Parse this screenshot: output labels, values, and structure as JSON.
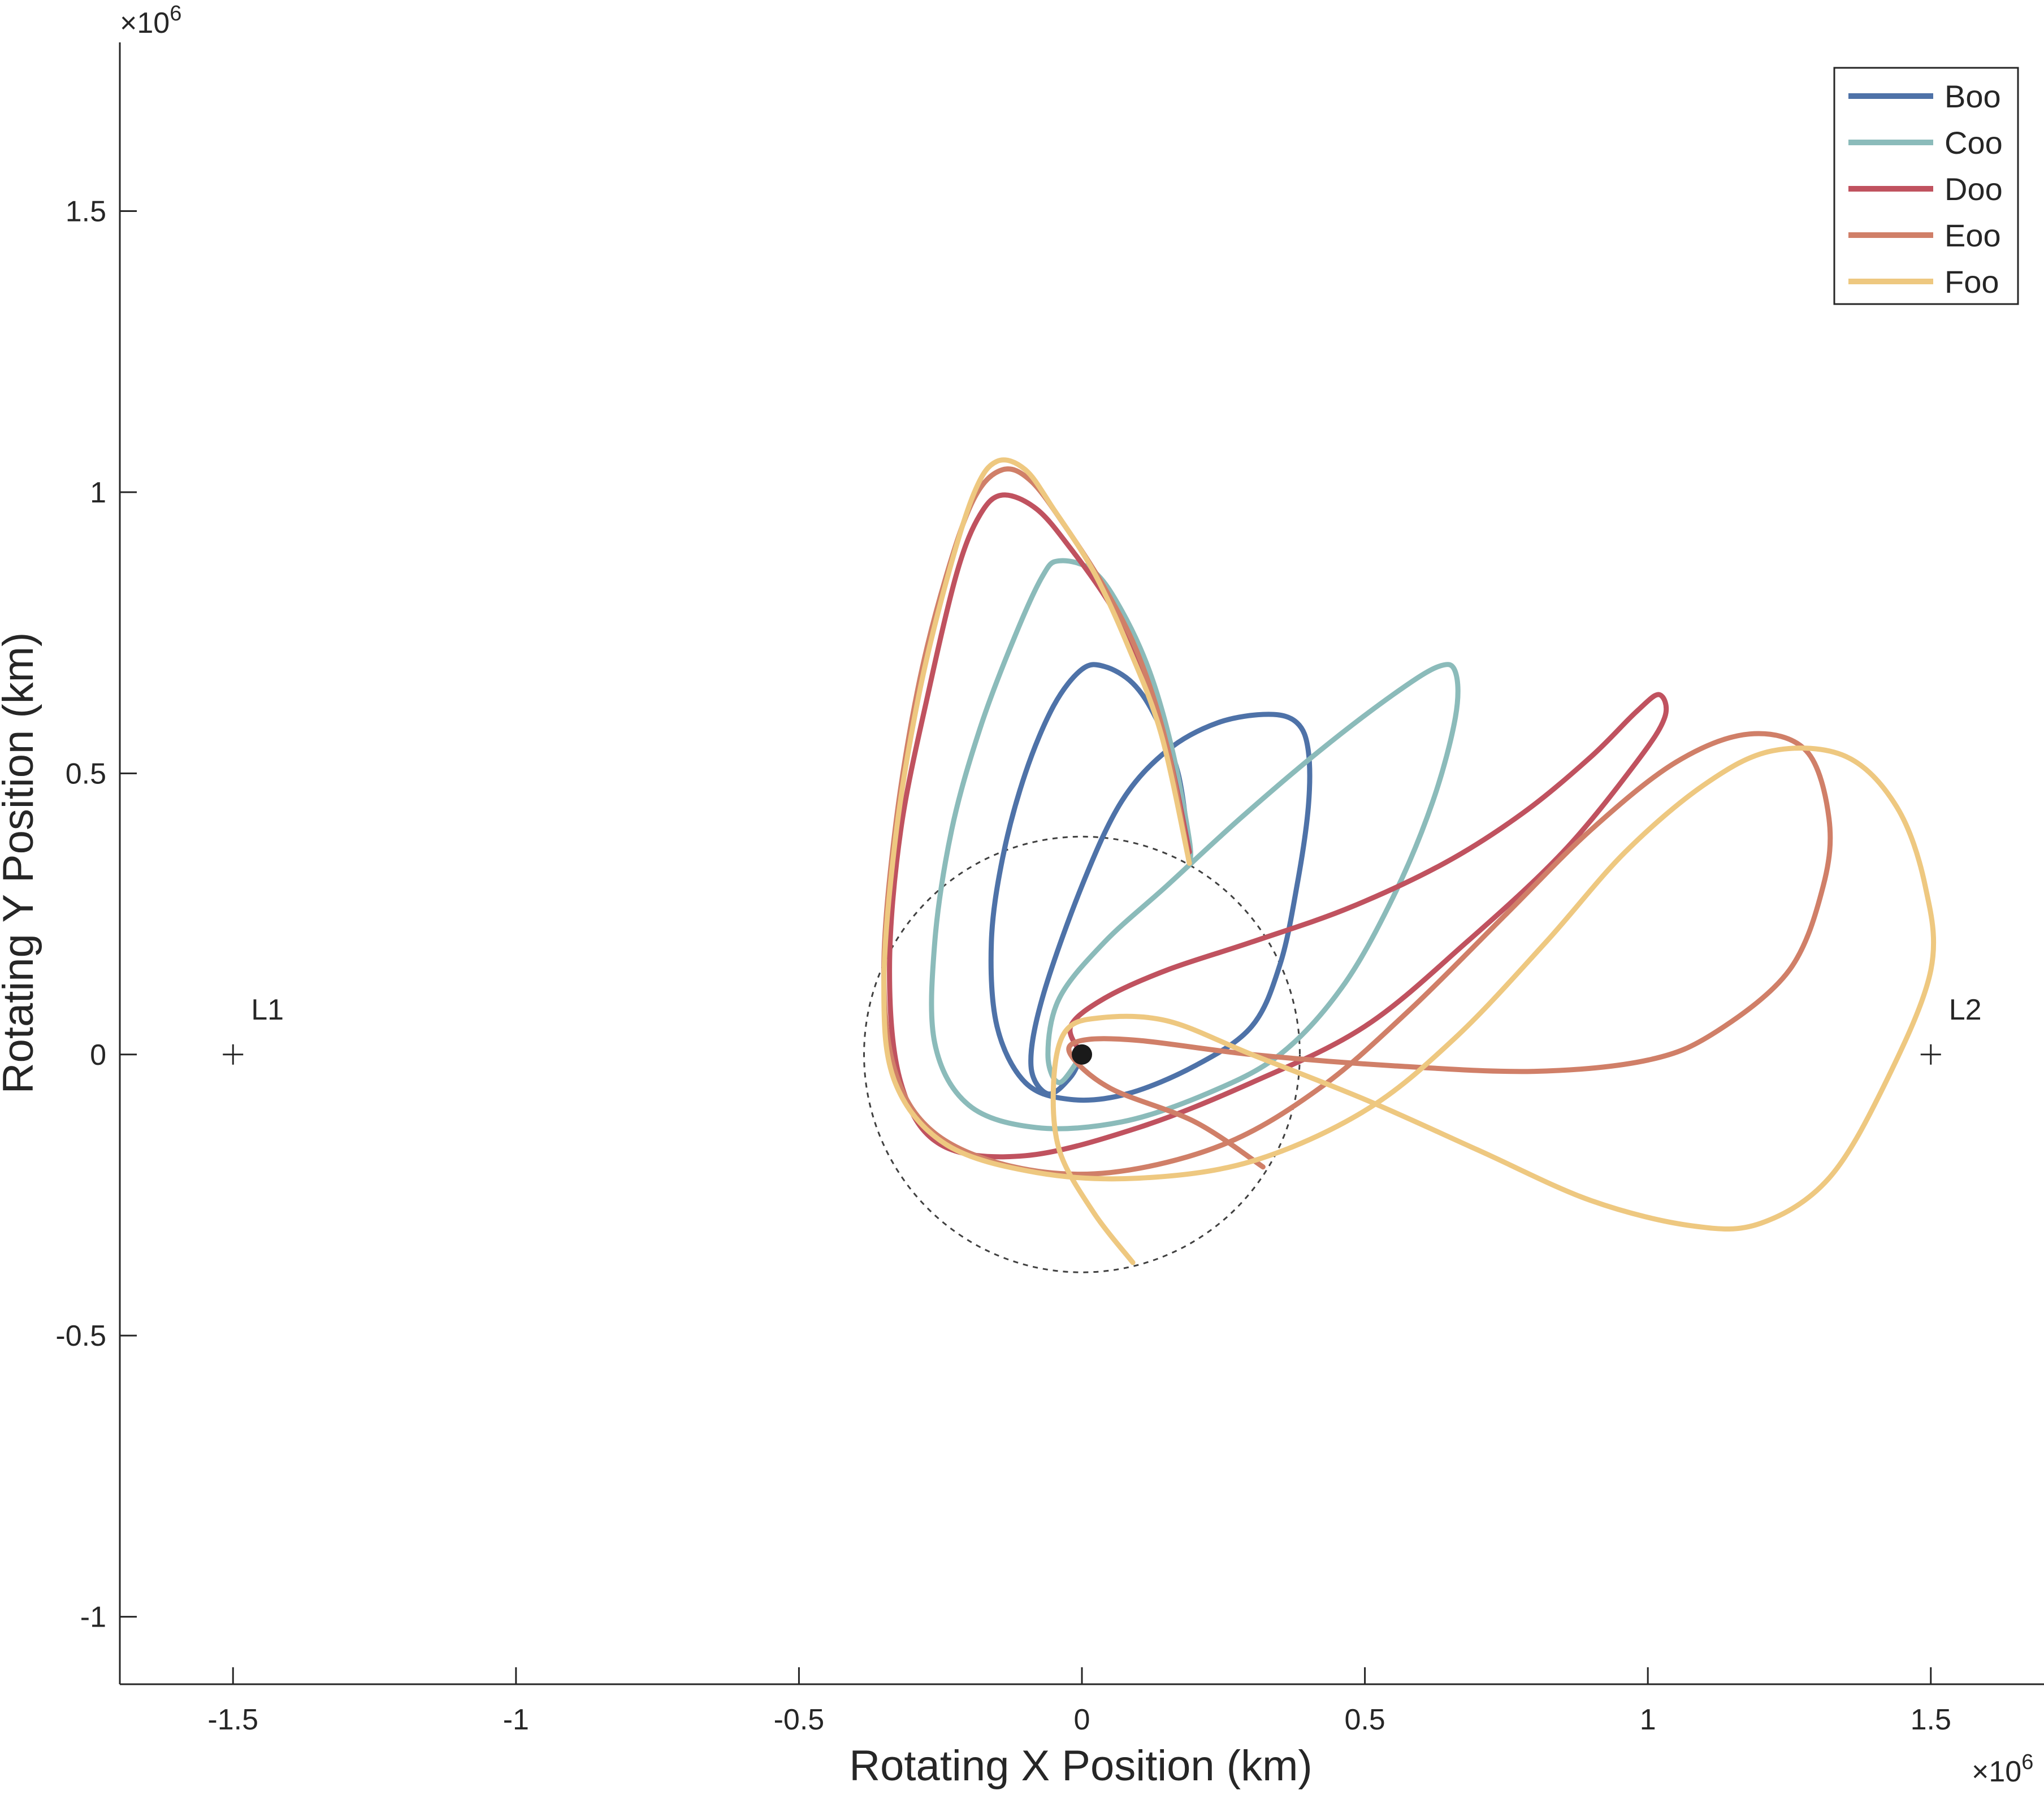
{
  "chart_data": {
    "type": "line",
    "title": "",
    "xlabel": "Rotating X Position (km)",
    "ylabel": "Rotating Y Position (km)",
    "x_exponent": "×10",
    "x_exponent_power": "6",
    "y_exponent": "×10",
    "y_exponent_power": "6",
    "xlim": [
      -1.7,
      1.7
    ],
    "ylim": [
      -1.12,
      1.8
    ],
    "xticks": [
      -1.5,
      -1,
      -0.5,
      0,
      0.5,
      1,
      1.5
    ],
    "xtick_labels": [
      "-1.5",
      "-1",
      "-0.5",
      "0",
      "0.5",
      "1",
      "1.5"
    ],
    "yticks": [
      -1,
      -0.5,
      0,
      0.5,
      1,
      1.5
    ],
    "ytick_labels": [
      "-1",
      "-0.5",
      "0",
      "0.5",
      "1",
      "1.5"
    ],
    "grid": false,
    "legend": "top-right",
    "series": [
      {
        "name": "Boo",
        "color": "#4e72a8",
        "points": [
          [
            0.0,
            0.0
          ],
          [
            -0.02,
            -0.04
          ],
          [
            -0.06,
            -0.07
          ],
          [
            -0.09,
            -0.02
          ],
          [
            -0.07,
            0.1
          ],
          [
            0.0,
            0.3
          ],
          [
            0.07,
            0.45
          ],
          [
            0.15,
            0.54
          ],
          [
            0.24,
            0.59
          ],
          [
            0.33,
            0.605
          ],
          [
            0.38,
            0.59
          ],
          [
            0.4,
            0.54
          ],
          [
            0.4,
            0.44
          ],
          [
            0.38,
            0.3
          ],
          [
            0.35,
            0.16
          ],
          [
            0.3,
            0.05
          ],
          [
            0.2,
            -0.02
          ],
          [
            0.08,
            -0.07
          ],
          [
            -0.02,
            -0.08
          ],
          [
            -0.1,
            -0.05
          ],
          [
            -0.15,
            0.05
          ],
          [
            -0.16,
            0.2
          ],
          [
            -0.14,
            0.35
          ],
          [
            -0.1,
            0.5
          ],
          [
            -0.05,
            0.62
          ],
          [
            0.0,
            0.685
          ],
          [
            0.04,
            0.69
          ],
          [
            0.09,
            0.66
          ],
          [
            0.13,
            0.6
          ],
          [
            0.17,
            0.5
          ],
          [
            0.19,
            0.36
          ]
        ]
      },
      {
        "name": "Coo",
        "color": "#8bbbba",
        "points": [
          [
            0.0,
            0.0
          ],
          [
            -0.04,
            -0.05
          ],
          [
            -0.06,
            0.0
          ],
          [
            -0.04,
            0.1
          ],
          [
            0.04,
            0.2
          ],
          [
            0.15,
            0.3
          ],
          [
            0.28,
            0.42
          ],
          [
            0.42,
            0.54
          ],
          [
            0.55,
            0.64
          ],
          [
            0.63,
            0.69
          ],
          [
            0.66,
            0.68
          ],
          [
            0.66,
            0.6
          ],
          [
            0.62,
            0.45
          ],
          [
            0.55,
            0.28
          ],
          [
            0.46,
            0.12
          ],
          [
            0.35,
            0.0
          ],
          [
            0.22,
            -0.07
          ],
          [
            0.07,
            -0.12
          ],
          [
            -0.08,
            -0.13
          ],
          [
            -0.2,
            -0.09
          ],
          [
            -0.26,
            0.02
          ],
          [
            -0.26,
            0.2
          ],
          [
            -0.23,
            0.4
          ],
          [
            -0.18,
            0.58
          ],
          [
            -0.12,
            0.74
          ],
          [
            -0.07,
            0.85
          ],
          [
            -0.04,
            0.878
          ],
          [
            0.02,
            0.86
          ],
          [
            0.07,
            0.79
          ],
          [
            0.12,
            0.68
          ],
          [
            0.16,
            0.54
          ],
          [
            0.19,
            0.38
          ],
          [
            0.19,
            0.34
          ]
        ]
      },
      {
        "name": "Doo",
        "color": "#c0525f",
        "points": [
          [
            0.0,
            0.0
          ],
          [
            -0.02,
            0.05
          ],
          [
            0.04,
            0.1
          ],
          [
            0.15,
            0.15
          ],
          [
            0.3,
            0.2
          ],
          [
            0.47,
            0.26
          ],
          [
            0.64,
            0.34
          ],
          [
            0.78,
            0.43
          ],
          [
            0.9,
            0.53
          ],
          [
            0.98,
            0.61
          ],
          [
            1.02,
            0.64
          ],
          [
            1.03,
            0.6
          ],
          [
            0.98,
            0.52
          ],
          [
            0.85,
            0.36
          ],
          [
            0.68,
            0.2
          ],
          [
            0.5,
            0.05
          ],
          [
            0.3,
            -0.05
          ],
          [
            0.1,
            -0.13
          ],
          [
            -0.1,
            -0.18
          ],
          [
            -0.25,
            -0.16
          ],
          [
            -0.32,
            -0.05
          ],
          [
            -0.34,
            0.15
          ],
          [
            -0.32,
            0.4
          ],
          [
            -0.27,
            0.65
          ],
          [
            -0.22,
            0.86
          ],
          [
            -0.18,
            0.96
          ],
          [
            -0.14,
            0.995
          ],
          [
            -0.08,
            0.97
          ],
          [
            -0.02,
            0.9
          ],
          [
            0.05,
            0.8
          ],
          [
            0.1,
            0.7
          ],
          [
            0.15,
            0.55
          ],
          [
            0.19,
            0.36
          ]
        ]
      },
      {
        "name": "Eoo",
        "color": "#d07f68",
        "points": [
          [
            0.32,
            -0.2
          ],
          [
            0.2,
            -0.12
          ],
          [
            0.05,
            -0.06
          ],
          [
            -0.02,
            0.0
          ],
          [
            0.0,
            0.025
          ],
          [
            0.1,
            0.025
          ],
          [
            0.3,
            0.0
          ],
          [
            0.55,
            -0.02
          ],
          [
            0.8,
            -0.03
          ],
          [
            1.0,
            -0.01
          ],
          [
            1.12,
            0.04
          ],
          [
            1.25,
            0.15
          ],
          [
            1.31,
            0.3
          ],
          [
            1.32,
            0.42
          ],
          [
            1.28,
            0.54
          ],
          [
            1.18,
            0.57
          ],
          [
            1.05,
            0.52
          ],
          [
            0.9,
            0.4
          ],
          [
            0.75,
            0.25
          ],
          [
            0.58,
            0.08
          ],
          [
            0.42,
            -0.06
          ],
          [
            0.25,
            -0.16
          ],
          [
            0.05,
            -0.21
          ],
          [
            -0.12,
            -0.2
          ],
          [
            -0.26,
            -0.14
          ],
          [
            -0.33,
            -0.03
          ],
          [
            -0.35,
            0.15
          ],
          [
            -0.33,
            0.4
          ],
          [
            -0.29,
            0.65
          ],
          [
            -0.24,
            0.85
          ],
          [
            -0.19,
            0.99
          ],
          [
            -0.14,
            1.04
          ],
          [
            -0.09,
            1.02
          ],
          [
            -0.03,
            0.94
          ],
          [
            0.04,
            0.83
          ],
          [
            0.1,
            0.71
          ],
          [
            0.15,
            0.55
          ],
          [
            0.19,
            0.34
          ]
        ]
      },
      {
        "name": "Foo",
        "color": "#eec880",
        "points": [
          [
            0.09,
            -0.37
          ],
          [
            0.02,
            -0.28
          ],
          [
            -0.04,
            -0.17
          ],
          [
            -0.05,
            -0.05
          ],
          [
            -0.03,
            0.04
          ],
          [
            0.03,
            0.065
          ],
          [
            0.15,
            0.06
          ],
          [
            0.3,
            0.0
          ],
          [
            0.5,
            -0.08
          ],
          [
            0.7,
            -0.17
          ],
          [
            0.9,
            -0.26
          ],
          [
            1.08,
            -0.305
          ],
          [
            1.2,
            -0.3
          ],
          [
            1.32,
            -0.22
          ],
          [
            1.42,
            -0.05
          ],
          [
            1.5,
            0.15
          ],
          [
            1.49,
            0.3
          ],
          [
            1.44,
            0.44
          ],
          [
            1.35,
            0.53
          ],
          [
            1.22,
            0.54
          ],
          [
            1.1,
            0.48
          ],
          [
            0.96,
            0.36
          ],
          [
            0.82,
            0.2
          ],
          [
            0.66,
            0.03
          ],
          [
            0.5,
            -0.1
          ],
          [
            0.3,
            -0.19
          ],
          [
            0.1,
            -0.22
          ],
          [
            -0.08,
            -0.21
          ],
          [
            -0.24,
            -0.16
          ],
          [
            -0.33,
            -0.05
          ],
          [
            -0.35,
            0.12
          ],
          [
            -0.33,
            0.38
          ],
          [
            -0.29,
            0.63
          ],
          [
            -0.24,
            0.84
          ],
          [
            -0.19,
            1.0
          ],
          [
            -0.15,
            1.055
          ],
          [
            -0.1,
            1.04
          ],
          [
            -0.05,
            0.97
          ],
          [
            0.02,
            0.86
          ],
          [
            0.08,
            0.73
          ],
          [
            0.14,
            0.57
          ],
          [
            0.19,
            0.34
          ]
        ]
      }
    ],
    "markers": [
      {
        "label": "L1",
        "x": -1.5,
        "y": 0.0
      },
      {
        "label": "L2",
        "x": 1.5,
        "y": 0.0
      }
    ],
    "center_body": {
      "x": 0.0,
      "y": 0.0
    },
    "circle": {
      "cx": 0.0,
      "cy": 0.0,
      "r": 0.385
    }
  }
}
